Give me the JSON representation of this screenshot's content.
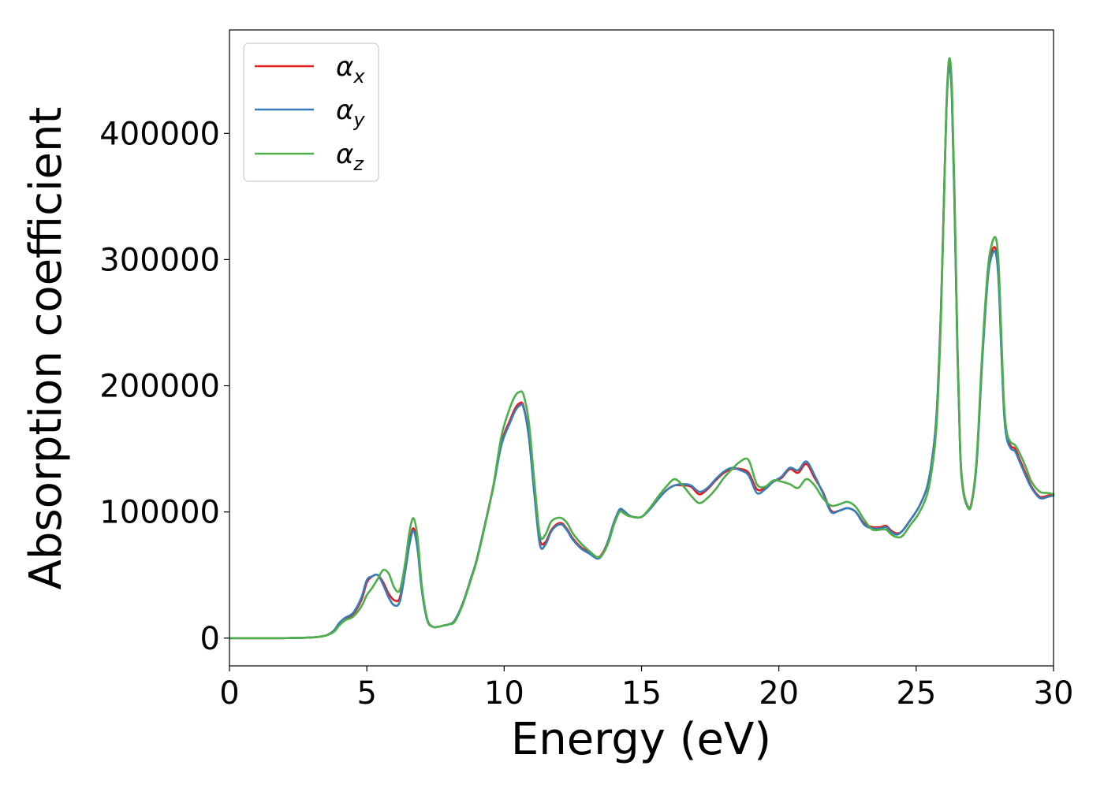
{
  "chart_data": {
    "type": "line",
    "title": "",
    "xlabel": "Energy (eV)",
    "ylabel": "Absorption coefficient",
    "xlim": [
      0,
      30
    ],
    "ylim": [
      -22000,
      482000
    ],
    "xticks": [
      0,
      5,
      10,
      15,
      20,
      25,
      30
    ],
    "xtick_labels": [
      "0",
      "5",
      "10",
      "15",
      "20",
      "25",
      "30"
    ],
    "yticks": [
      0,
      100000,
      200000,
      300000,
      400000
    ],
    "ytick_labels": [
      "0",
      "100000",
      "200000",
      "300000",
      "400000"
    ],
    "grid": false,
    "legend_position": "top-left",
    "series": [
      {
        "name": "αx",
        "label_main": "α",
        "label_sub": "x",
        "color": "#e41a1c",
        "x": [
          0,
          1,
          2,
          3,
          3.5,
          3.8,
          4.0,
          4.2,
          4.5,
          4.8,
          5.0,
          5.2,
          5.4,
          5.6,
          5.8,
          6.0,
          6.2,
          6.4,
          6.55,
          6.7,
          6.85,
          7.0,
          7.2,
          7.4,
          7.6,
          7.8,
          8.0,
          8.2,
          8.5,
          8.8,
          9.0,
          9.3,
          9.6,
          9.9,
          10.2,
          10.4,
          10.55,
          10.7,
          10.9,
          11.1,
          11.3,
          11.5,
          11.7,
          11.9,
          12.1,
          12.3,
          12.5,
          12.8,
          13.1,
          13.4,
          13.6,
          13.8,
          14.0,
          14.2,
          14.35,
          14.5,
          14.7,
          15.0,
          15.3,
          15.6,
          15.9,
          16.2,
          16.5,
          16.8,
          17.1,
          17.4,
          17.7,
          18.0,
          18.3,
          18.6,
          18.9,
          19.2,
          19.5,
          19.8,
          20.1,
          20.4,
          20.7,
          21.0,
          21.3,
          21.6,
          21.9,
          22.2,
          22.5,
          22.8,
          23.1,
          23.4,
          23.7,
          23.9,
          24.1,
          24.3,
          24.5,
          24.8,
          25.1,
          25.4,
          25.6,
          25.75,
          25.9,
          26.0,
          26.1,
          26.2,
          26.3,
          26.4,
          26.5,
          26.6,
          26.7,
          26.85,
          27.0,
          27.2,
          27.4,
          27.6,
          27.75,
          27.9,
          28.0,
          28.1,
          28.2,
          28.3,
          28.45,
          28.6,
          28.8,
          29.0,
          29.2,
          29.5,
          29.8,
          30.0
        ],
        "y": [
          0,
          0,
          0,
          500,
          2000,
          6000,
          12000,
          15000,
          19000,
          30000,
          44000,
          49000,
          50000,
          44000,
          35000,
          30000,
          32000,
          55000,
          76000,
          87000,
          72000,
          40000,
          15000,
          9000,
          9000,
          10000,
          11000,
          14000,
          28000,
          48000,
          62000,
          90000,
          120000,
          155000,
          172000,
          182000,
          186000,
          184000,
          160000,
          115000,
          78000,
          76000,
          85000,
          90000,
          91000,
          86000,
          79000,
          72000,
          68000,
          64000,
          68000,
          78000,
          92000,
          101000,
          101000,
          98000,
          96000,
          96000,
          102000,
          110000,
          117000,
          121000,
          121000,
          120000,
          114000,
          118000,
          125000,
          131000,
          134000,
          134000,
          131000,
          118000,
          119000,
          124000,
          127000,
          134000,
          131000,
          138000,
          127000,
          116000,
          101000,
          101000,
          103000,
          100000,
          91000,
          88000,
          88000,
          89000,
          85000,
          83000,
          85000,
          94000,
          104000,
          120000,
          145000,
          180000,
          260000,
          340000,
          420000,
          455000,
          430000,
          340000,
          230000,
          150000,
          120000,
          106000,
          106000,
          140000,
          220000,
          285000,
          306000,
          308000,
          285000,
          230000,
          180000,
          160000,
          152000,
          150000,
          140000,
          130000,
          120000,
          112000,
          113000,
          114000
        ]
      },
      {
        "name": "αy",
        "label_main": "α",
        "label_sub": "y",
        "color": "#377eb8",
        "x": [
          0,
          1,
          2,
          3,
          3.5,
          3.8,
          4.0,
          4.2,
          4.5,
          4.8,
          5.0,
          5.2,
          5.4,
          5.6,
          5.8,
          6.0,
          6.2,
          6.4,
          6.55,
          6.7,
          6.85,
          7.0,
          7.2,
          7.4,
          7.6,
          7.8,
          8.0,
          8.2,
          8.5,
          8.8,
          9.0,
          9.3,
          9.6,
          9.9,
          10.2,
          10.4,
          10.55,
          10.7,
          10.9,
          11.1,
          11.3,
          11.5,
          11.7,
          11.9,
          12.1,
          12.3,
          12.5,
          12.8,
          13.1,
          13.4,
          13.6,
          13.8,
          14.0,
          14.2,
          14.35,
          14.5,
          14.7,
          15.0,
          15.3,
          15.6,
          15.9,
          16.2,
          16.5,
          16.8,
          17.1,
          17.4,
          17.7,
          18.0,
          18.3,
          18.6,
          18.9,
          19.2,
          19.5,
          19.8,
          20.1,
          20.4,
          20.7,
          21.0,
          21.3,
          21.6,
          21.9,
          22.2,
          22.5,
          22.8,
          23.1,
          23.4,
          23.7,
          23.9,
          24.1,
          24.3,
          24.5,
          24.8,
          25.1,
          25.4,
          25.6,
          25.75,
          25.9,
          26.0,
          26.1,
          26.2,
          26.3,
          26.4,
          26.5,
          26.6,
          26.7,
          26.85,
          27.0,
          27.2,
          27.4,
          27.6,
          27.75,
          27.9,
          28.0,
          28.1,
          28.2,
          28.3,
          28.45,
          28.6,
          28.8,
          29.0,
          29.2,
          29.5,
          29.8,
          30.0
        ],
        "y": [
          0,
          0,
          0,
          500,
          2000,
          6000,
          12000,
          16000,
          20000,
          32000,
          46000,
          49000,
          50000,
          42000,
          32000,
          26000,
          29000,
          53000,
          74000,
          85000,
          70000,
          38000,
          14000,
          9000,
          9000,
          10000,
          11000,
          14000,
          28000,
          48000,
          62000,
          90000,
          119000,
          153000,
          170000,
          180000,
          184000,
          183000,
          159000,
          114000,
          74000,
          74000,
          84000,
          89000,
          90000,
          85000,
          78000,
          71000,
          67000,
          63000,
          67000,
          78000,
          92000,
          102000,
          101000,
          98000,
          96000,
          96000,
          102000,
          110000,
          117000,
          121000,
          122000,
          121000,
          116000,
          119000,
          126000,
          132000,
          135000,
          133000,
          129000,
          115000,
          118000,
          124000,
          128000,
          135000,
          133000,
          140000,
          129000,
          115000,
          100000,
          101000,
          103000,
          100000,
          90000,
          87000,
          87000,
          88000,
          84000,
          82000,
          85000,
          94000,
          104000,
          120000,
          145000,
          180000,
          258000,
          338000,
          418000,
          453000,
          428000,
          338000,
          228000,
          148000,
          118000,
          105000,
          105000,
          138000,
          218000,
          283000,
          303000,
          305000,
          283000,
          228000,
          178000,
          158000,
          150000,
          148000,
          138000,
          128000,
          119000,
          111000,
          112000,
          113000
        ]
      },
      {
        "name": "αz",
        "label_main": "α",
        "label_sub": "z",
        "color": "#4daf4a",
        "x": [
          0,
          1,
          2,
          3,
          3.5,
          3.8,
          4.0,
          4.2,
          4.5,
          4.8,
          5.0,
          5.2,
          5.4,
          5.6,
          5.8,
          6.0,
          6.2,
          6.4,
          6.55,
          6.7,
          6.85,
          7.0,
          7.2,
          7.4,
          7.6,
          7.8,
          8.0,
          8.2,
          8.5,
          8.8,
          9.0,
          9.3,
          9.6,
          9.9,
          10.2,
          10.4,
          10.55,
          10.7,
          10.9,
          11.1,
          11.3,
          11.5,
          11.7,
          11.9,
          12.1,
          12.3,
          12.5,
          12.8,
          13.1,
          13.4,
          13.6,
          13.8,
          14.0,
          14.2,
          14.35,
          14.5,
          14.7,
          15.0,
          15.3,
          15.6,
          15.9,
          16.2,
          16.5,
          16.8,
          17.1,
          17.4,
          17.7,
          18.0,
          18.3,
          18.6,
          18.9,
          19.2,
          19.5,
          19.8,
          20.1,
          20.4,
          20.7,
          21.0,
          21.3,
          21.6,
          21.9,
          22.2,
          22.5,
          22.8,
          23.1,
          23.4,
          23.7,
          23.9,
          24.1,
          24.3,
          24.5,
          24.8,
          25.1,
          25.4,
          25.6,
          25.75,
          25.9,
          26.0,
          26.1,
          26.2,
          26.3,
          26.4,
          26.5,
          26.6,
          26.7,
          26.85,
          27.0,
          27.2,
          27.4,
          27.6,
          27.75,
          27.9,
          28.0,
          28.1,
          28.2,
          28.3,
          28.45,
          28.6,
          28.8,
          29.0,
          29.2,
          29.5,
          29.8,
          30.0
        ],
        "y": [
          0,
          0,
          0,
          500,
          2000,
          5000,
          10000,
          14000,
          17000,
          25000,
          34000,
          40000,
          47000,
          54000,
          51000,
          40000,
          38000,
          60000,
          84000,
          95000,
          79000,
          42000,
          15000,
          9000,
          9000,
          10000,
          11000,
          13000,
          27000,
          47000,
          61000,
          89000,
          120000,
          160000,
          182000,
          192000,
          195000,
          193000,
          171000,
          124000,
          82000,
          82000,
          92000,
          95000,
          95000,
          91000,
          83000,
          75000,
          69000,
          64000,
          67000,
          76000,
          90000,
          100000,
          99000,
          97000,
          96000,
          96000,
          103000,
          112000,
          120000,
          126000,
          121000,
          113000,
          107000,
          111000,
          118000,
          127000,
          134000,
          140000,
          141000,
          122000,
          120000,
          125000,
          124000,
          122000,
          119000,
          126000,
          121000,
          111000,
          105000,
          106000,
          108000,
          104000,
          94000,
          86000,
          86000,
          86000,
          82000,
          80000,
          81000,
          90000,
          99000,
          114000,
          138000,
          172000,
          252000,
          336000,
          421000,
          459000,
          437000,
          348000,
          235000,
          150000,
          119000,
          106000,
          105000,
          142000,
          225000,
          290000,
          312000,
          317000,
          297000,
          240000,
          185000,
          163000,
          155000,
          153000,
          145000,
          135000,
          124000,
          116000,
          115000,
          114000
        ]
      }
    ]
  }
}
